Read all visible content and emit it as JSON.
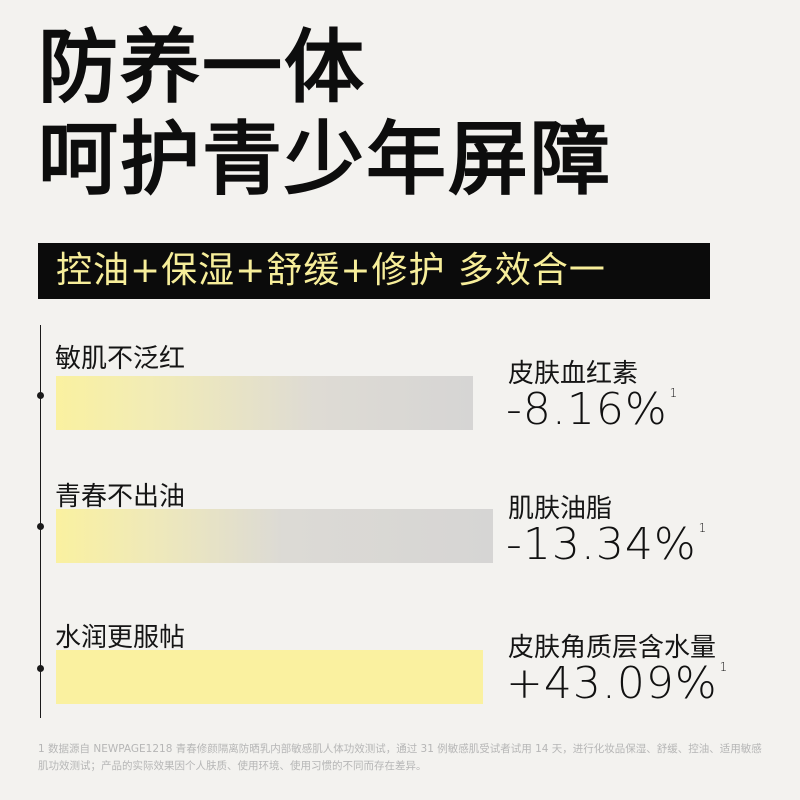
{
  "headline": {
    "line1": "防养一体",
    "line2": "呵护青少年屏障"
  },
  "banner": {
    "text": "控油+保湿+舒缓+修护 多效合一"
  },
  "rows": [
    {
      "label": "敏肌不泛红",
      "metric_name": "皮肤血红素",
      "metric_value": "-8.16%",
      "footnote_mark": "1"
    },
    {
      "label": "青春不出油",
      "metric_name": "肌肤油脂",
      "metric_value": "-13.34%",
      "footnote_mark": "1"
    },
    {
      "label": "水润更服帖",
      "metric_name": "皮肤角质层含水量",
      "metric_value": "+43.09%",
      "footnote_mark": "1"
    }
  ],
  "footnote": "1 数据源自 NEWPAGE1218 青春修颜隔离防晒乳内部敏感肌人体功效测试，通过 31 例敏感肌受试者试用 14 天，进行化妆品保湿、舒缓、控油、适用敏感肌功效测试；产品的实际效果因个人肤质、使用环境、使用习惯的不同而存在差异。",
  "colors": {
    "background": "#f3f2ef",
    "banner_bg": "#0b0b0b",
    "banner_text": "#f7ee9a",
    "bar_yellow": "#faf1a0",
    "bar_gray": "#d6d5d4",
    "footnote": "#b6b6b6"
  }
}
